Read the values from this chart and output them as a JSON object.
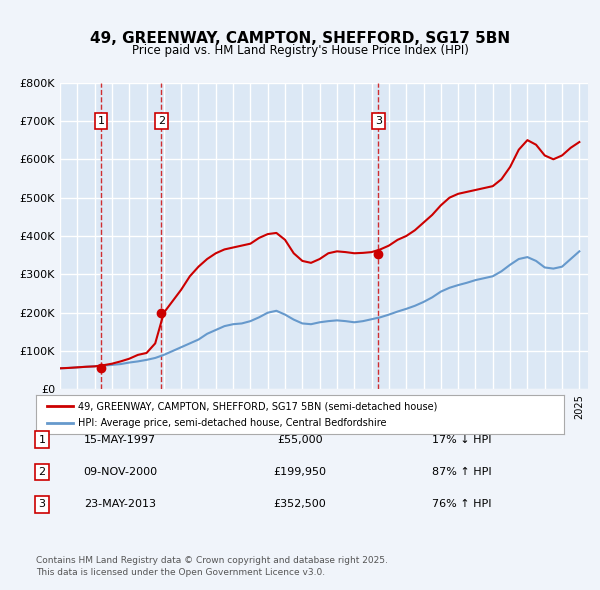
{
  "title": "49, GREENWAY, CAMPTON, SHEFFORD, SG17 5BN",
  "subtitle": "Price paid vs. HM Land Registry's House Price Index (HPI)",
  "bg_color": "#f0f4fa",
  "plot_bg_color": "#dce8f5",
  "grid_color": "#ffffff",
  "red_line_color": "#cc0000",
  "blue_line_color": "#6699cc",
  "transaction_line_color": "#cc0000",
  "ylim": [
    0,
    800000
  ],
  "yticks": [
    0,
    100000,
    200000,
    300000,
    400000,
    500000,
    600000,
    700000,
    800000
  ],
  "ytick_labels": [
    "£0",
    "£100K",
    "£200K",
    "£300K",
    "£400K",
    "£500K",
    "£600K",
    "£700K",
    "£800K"
  ],
  "xlim_start": 1995.0,
  "xlim_end": 2025.5,
  "transactions": [
    {
      "num": 1,
      "date": "15-MAY-1997",
      "year": 1997.37,
      "price": 55000,
      "label": "1"
    },
    {
      "num": 2,
      "date": "09-NOV-2000",
      "year": 2000.86,
      "price": 199950,
      "label": "2"
    },
    {
      "num": 3,
      "date": "23-MAY-2013",
      "year": 2013.39,
      "price": 352500,
      "label": "3"
    }
  ],
  "legend_red_label": "49, GREENWAY, CAMPTON, SHEFFORD, SG17 5BN (semi-detached house)",
  "legend_blue_label": "HPI: Average price, semi-detached house, Central Bedfordshire",
  "footer_text": "Contains HM Land Registry data © Crown copyright and database right 2025.\nThis data is licensed under the Open Government Licence v3.0.",
  "table_rows": [
    {
      "num": "1",
      "date": "15-MAY-1997",
      "price": "£55,000",
      "pct": "17% ↓ HPI"
    },
    {
      "num": "2",
      "date": "09-NOV-2000",
      "price": "£199,950",
      "pct": "87% ↑ HPI"
    },
    {
      "num": "3",
      "date": "23-MAY-2013",
      "price": "£352,500",
      "pct": "76% ↑ HPI"
    }
  ],
  "hpi_years": [
    1995,
    1995.5,
    1996,
    1996.5,
    1997,
    1997.5,
    1998,
    1998.5,
    1999,
    1999.5,
    2000,
    2000.5,
    2001,
    2001.5,
    2002,
    2002.5,
    2003,
    2003.5,
    2004,
    2004.5,
    2005,
    2005.5,
    2006,
    2006.5,
    2007,
    2007.5,
    2008,
    2008.5,
    2009,
    2009.5,
    2010,
    2010.5,
    2011,
    2011.5,
    2012,
    2012.5,
    2013,
    2013.5,
    2014,
    2014.5,
    2015,
    2015.5,
    2016,
    2016.5,
    2017,
    2017.5,
    2018,
    2018.5,
    2019,
    2019.5,
    2020,
    2020.5,
    2021,
    2021.5,
    2022,
    2022.5,
    2023,
    2023.5,
    2024,
    2024.5,
    2025
  ],
  "hpi_values": [
    55000,
    56000,
    57500,
    59000,
    60500,
    62000,
    64000,
    66000,
    70000,
    73000,
    77000,
    82000,
    90000,
    100000,
    110000,
    120000,
    130000,
    145000,
    155000,
    165000,
    170000,
    172000,
    178000,
    188000,
    200000,
    205000,
    195000,
    182000,
    172000,
    170000,
    175000,
    178000,
    180000,
    178000,
    175000,
    178000,
    183000,
    188000,
    195000,
    203000,
    210000,
    218000,
    228000,
    240000,
    255000,
    265000,
    272000,
    278000,
    285000,
    290000,
    295000,
    308000,
    325000,
    340000,
    345000,
    335000,
    318000,
    315000,
    320000,
    340000,
    360000
  ],
  "price_years": [
    1995,
    1995.5,
    1996,
    1996.5,
    1997,
    1997.5,
    1998,
    1998.5,
    1999,
    1999.5,
    2000,
    2000.5,
    2001,
    2001.5,
    2002,
    2002.5,
    2003,
    2003.5,
    2004,
    2004.5,
    2005,
    2005.5,
    2006,
    2006.5,
    2007,
    2007.5,
    2008,
    2008.5,
    2009,
    2009.5,
    2010,
    2010.5,
    2011,
    2011.5,
    2012,
    2012.5,
    2013,
    2013.5,
    2014,
    2014.5,
    2015,
    2015.5,
    2016,
    2016.5,
    2017,
    2017.5,
    2018,
    2018.5,
    2019,
    2019.5,
    2020,
    2020.5,
    2021,
    2021.5,
    2022,
    2022.5,
    2023,
    2023.5,
    2024,
    2024.5,
    2025
  ],
  "price_values": [
    55000,
    56000,
    57500,
    59000,
    60000,
    63000,
    67000,
    73000,
    80000,
    90000,
    95000,
    120000,
    200000,
    230000,
    260000,
    295000,
    320000,
    340000,
    355000,
    365000,
    370000,
    375000,
    380000,
    395000,
    405000,
    408000,
    390000,
    355000,
    335000,
    330000,
    340000,
    355000,
    360000,
    358000,
    355000,
    356000,
    358000,
    365000,
    375000,
    390000,
    400000,
    415000,
    435000,
    455000,
    480000,
    500000,
    510000,
    515000,
    520000,
    525000,
    530000,
    548000,
    580000,
    625000,
    650000,
    638000,
    610000,
    600000,
    610000,
    630000,
    645000
  ]
}
